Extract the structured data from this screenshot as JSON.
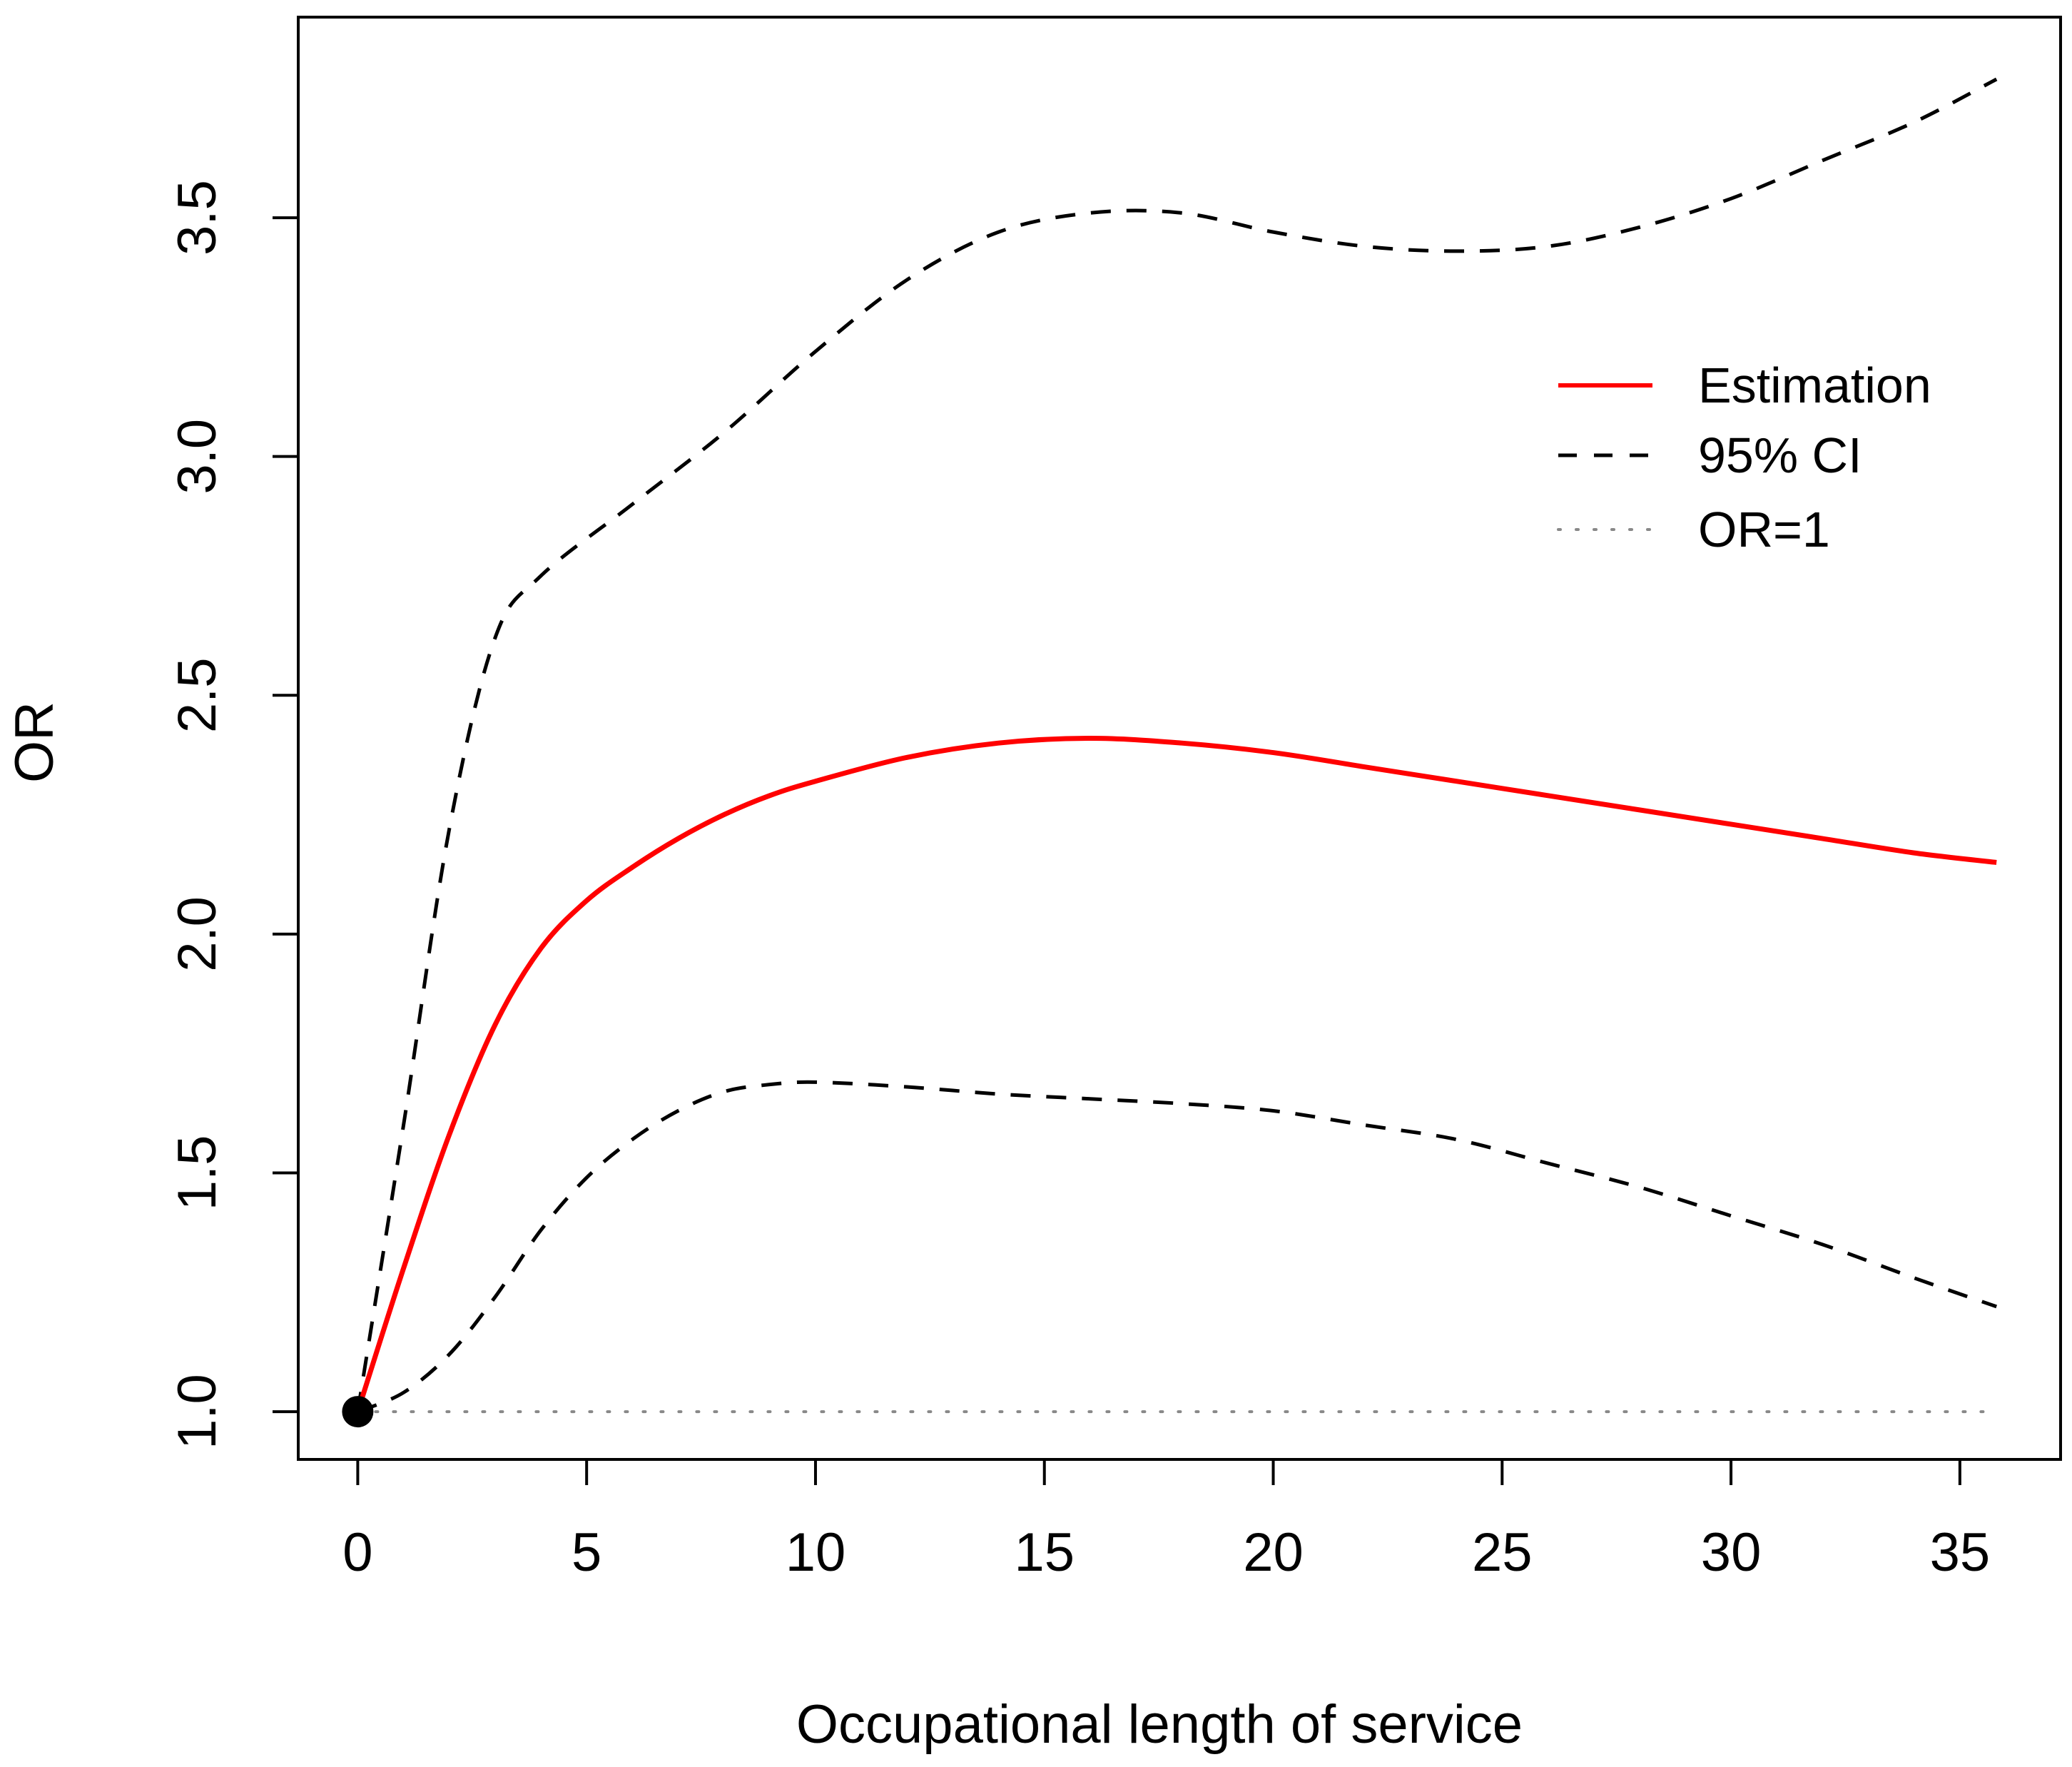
{
  "chart_data": {
    "type": "line",
    "title": "",
    "xlabel": "Occupational length of service",
    "ylabel": "OR",
    "xlim": [
      -1.3,
      37.2
    ],
    "ylim": [
      0.9,
      3.92
    ],
    "xticks": [
      0,
      5,
      10,
      15,
      20,
      25,
      30,
      35
    ],
    "xtick_labels": [
      "0",
      "5",
      "10",
      "15",
      "20",
      "25",
      "30",
      "35"
    ],
    "yticks": [
      1.0,
      1.5,
      2.0,
      2.5,
      3.0,
      3.5
    ],
    "ytick_labels": [
      "1.0",
      "1.5",
      "2.0",
      "2.5",
      "3.0",
      "3.5"
    ],
    "grid": false,
    "legend_position": "top-right",
    "reference_point": {
      "x": 0,
      "y": 1.0
    },
    "series": [
      {
        "name": "Estimation",
        "style": "solid",
        "color": "#ff0000",
        "x": [
          0,
          1,
          2,
          3,
          4,
          5,
          6,
          7,
          8,
          9,
          10,
          12,
          14,
          16,
          18,
          20,
          22,
          24,
          26,
          28,
          30,
          32,
          34,
          35.8
        ],
        "y": [
          1.0,
          1.3,
          1.58,
          1.81,
          1.97,
          2.07,
          2.14,
          2.2,
          2.25,
          2.29,
          2.32,
          2.37,
          2.4,
          2.41,
          2.4,
          2.38,
          2.35,
          2.32,
          2.29,
          2.26,
          2.23,
          2.2,
          2.17,
          2.15
        ]
      },
      {
        "name": "95% CI",
        "style": "dashed",
        "color": "#000000",
        "x": [
          0,
          1,
          2,
          3,
          4,
          6,
          8,
          10,
          12,
          14,
          16,
          18,
          20,
          22,
          24,
          26,
          28,
          30,
          32,
          34,
          35.8
        ],
        "y": [
          1.0,
          1.6,
          2.22,
          2.62,
          2.75,
          2.9,
          3.05,
          3.22,
          3.37,
          3.47,
          3.51,
          3.51,
          3.47,
          3.44,
          3.43,
          3.44,
          3.48,
          3.54,
          3.62,
          3.7,
          3.79
        ]
      },
      {
        "name": "95% CI lower",
        "style": "dashed",
        "color": "#000000",
        "x": [
          0,
          1,
          2,
          3,
          4,
          5,
          6,
          7,
          8,
          9,
          10,
          12,
          14,
          16,
          18,
          20,
          22,
          24,
          26,
          28,
          30,
          32,
          34,
          35.8
        ],
        "y": [
          1.0,
          1.04,
          1.12,
          1.24,
          1.38,
          1.49,
          1.57,
          1.63,
          1.67,
          1.685,
          1.69,
          1.68,
          1.665,
          1.655,
          1.645,
          1.63,
          1.6,
          1.57,
          1.52,
          1.47,
          1.41,
          1.35,
          1.28,
          1.22
        ]
      },
      {
        "name": "OR=1",
        "style": "dotted",
        "color": "#888888",
        "x": [
          0,
          35.8
        ],
        "y": [
          1.0,
          1.0
        ]
      }
    ],
    "legend": [
      {
        "label": "Estimation",
        "style": "solid",
        "color": "#ff0000"
      },
      {
        "label": "95% CI",
        "style": "dashed",
        "color": "#000000"
      },
      {
        "label": "OR=1",
        "style": "dotted",
        "color": "#888888"
      }
    ]
  }
}
